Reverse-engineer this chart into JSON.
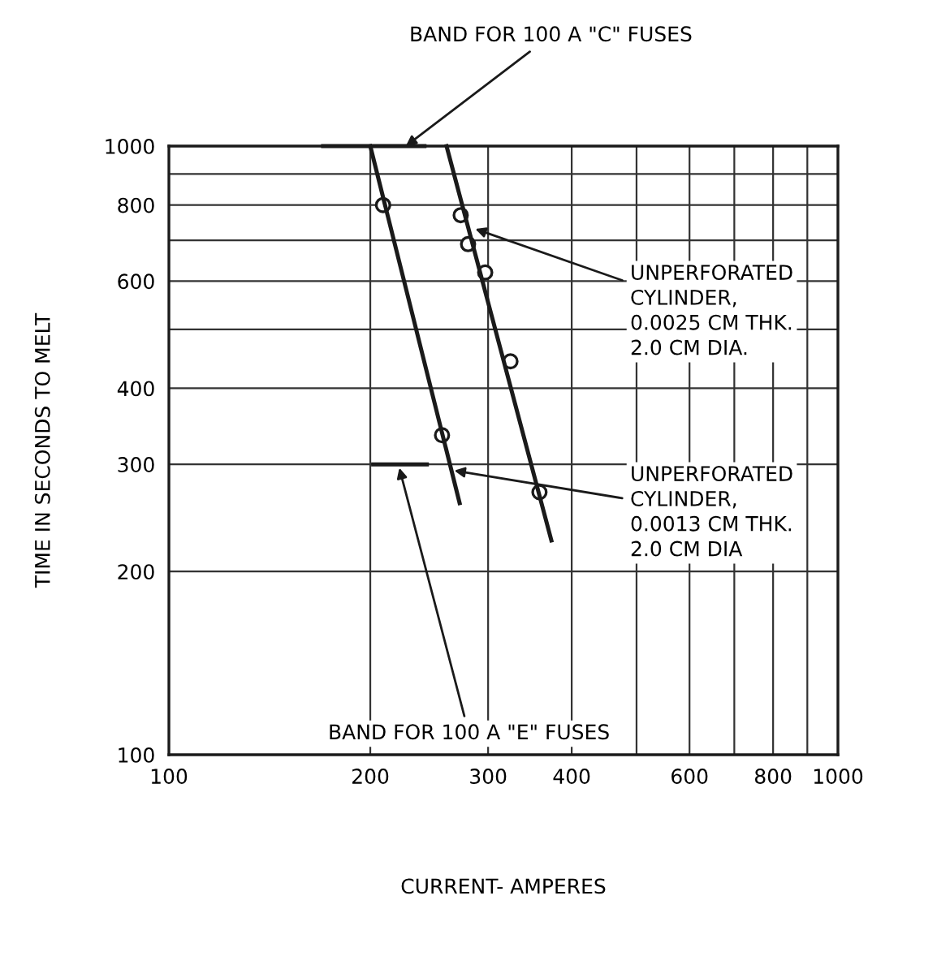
{
  "chart_data": {
    "type": "scatter",
    "xlabel": "CURRENT- AMPERES",
    "ylabel": "TIME IN SECONDS TO MELT",
    "log": "xy",
    "grid": true,
    "legend": false,
    "xlim": [
      100,
      1000
    ],
    "ylim": [
      100,
      1000
    ],
    "xticks": [
      100,
      200,
      300,
      400,
      {
        "value": 500,
        "label": null
      },
      600,
      {
        "value": 700,
        "label": null
      },
      800,
      {
        "value": 900,
        "label": null
      },
      1000
    ],
    "yticks": [
      100,
      200,
      300,
      400,
      {
        "value": 500,
        "label": null
      },
      600,
      {
        "value": 700,
        "label": null
      },
      800,
      {
        "value": 900,
        "label": null
      },
      1000
    ],
    "series": [
      {
        "type": "line",
        "color": "#1a1a1a",
        "x": [
          200,
          272
        ],
        "values": [
          1000,
          259
        ],
        "marker": "none",
        "line_style": "solid"
      },
      {
        "type": "line",
        "color": "#1a1a1a",
        "x": [
          260,
          373
        ],
        "values": [
          1000,
          225
        ],
        "marker": "none",
        "line_style": "solid"
      },
      {
        "color": "#1a1a1a",
        "x": [
          209,
          256
        ],
        "values": [
          800,
          335
        ],
        "marker": "circle"
      },
      {
        "color": "#1a1a1a",
        "x": [
          273,
          280,
          297,
          324,
          358
        ],
        "values": [
          770,
          690,
          620,
          443,
          270
        ],
        "marker": "circle"
      },
      {
        "type": "line",
        "color": "#1a1a1a",
        "x": [
          170,
          241
        ],
        "values": [
          1000,
          1000
        ],
        "marker": "none",
        "line_style": "solid"
      },
      {
        "type": "line",
        "color": "#1a1a1a",
        "x": [
          202,
          243
        ],
        "values": [
          300,
          300
        ],
        "marker": "none",
        "line_style": "solid"
      }
    ],
    "annotations": [
      {
        "text": "BAND FOR 100 A \"C\" FUSES",
        "x": 226,
        "y": 1000
      },
      {
        "text": "UNPERFORATED\nCYLINDER,\n0.0025 CM THK.\n2.0 CM DIA.",
        "x": 287,
        "y": 731
      },
      {
        "text": "UNPERFORATED\nCYLINDER,\n0.0013 CM THK.\n2.0 CM DIA",
        "x": 267,
        "y": 293
      },
      {
        "text": "BAND FOR 100 A \"E\" FUSES",
        "x": 221,
        "y": 296
      }
    ]
  }
}
